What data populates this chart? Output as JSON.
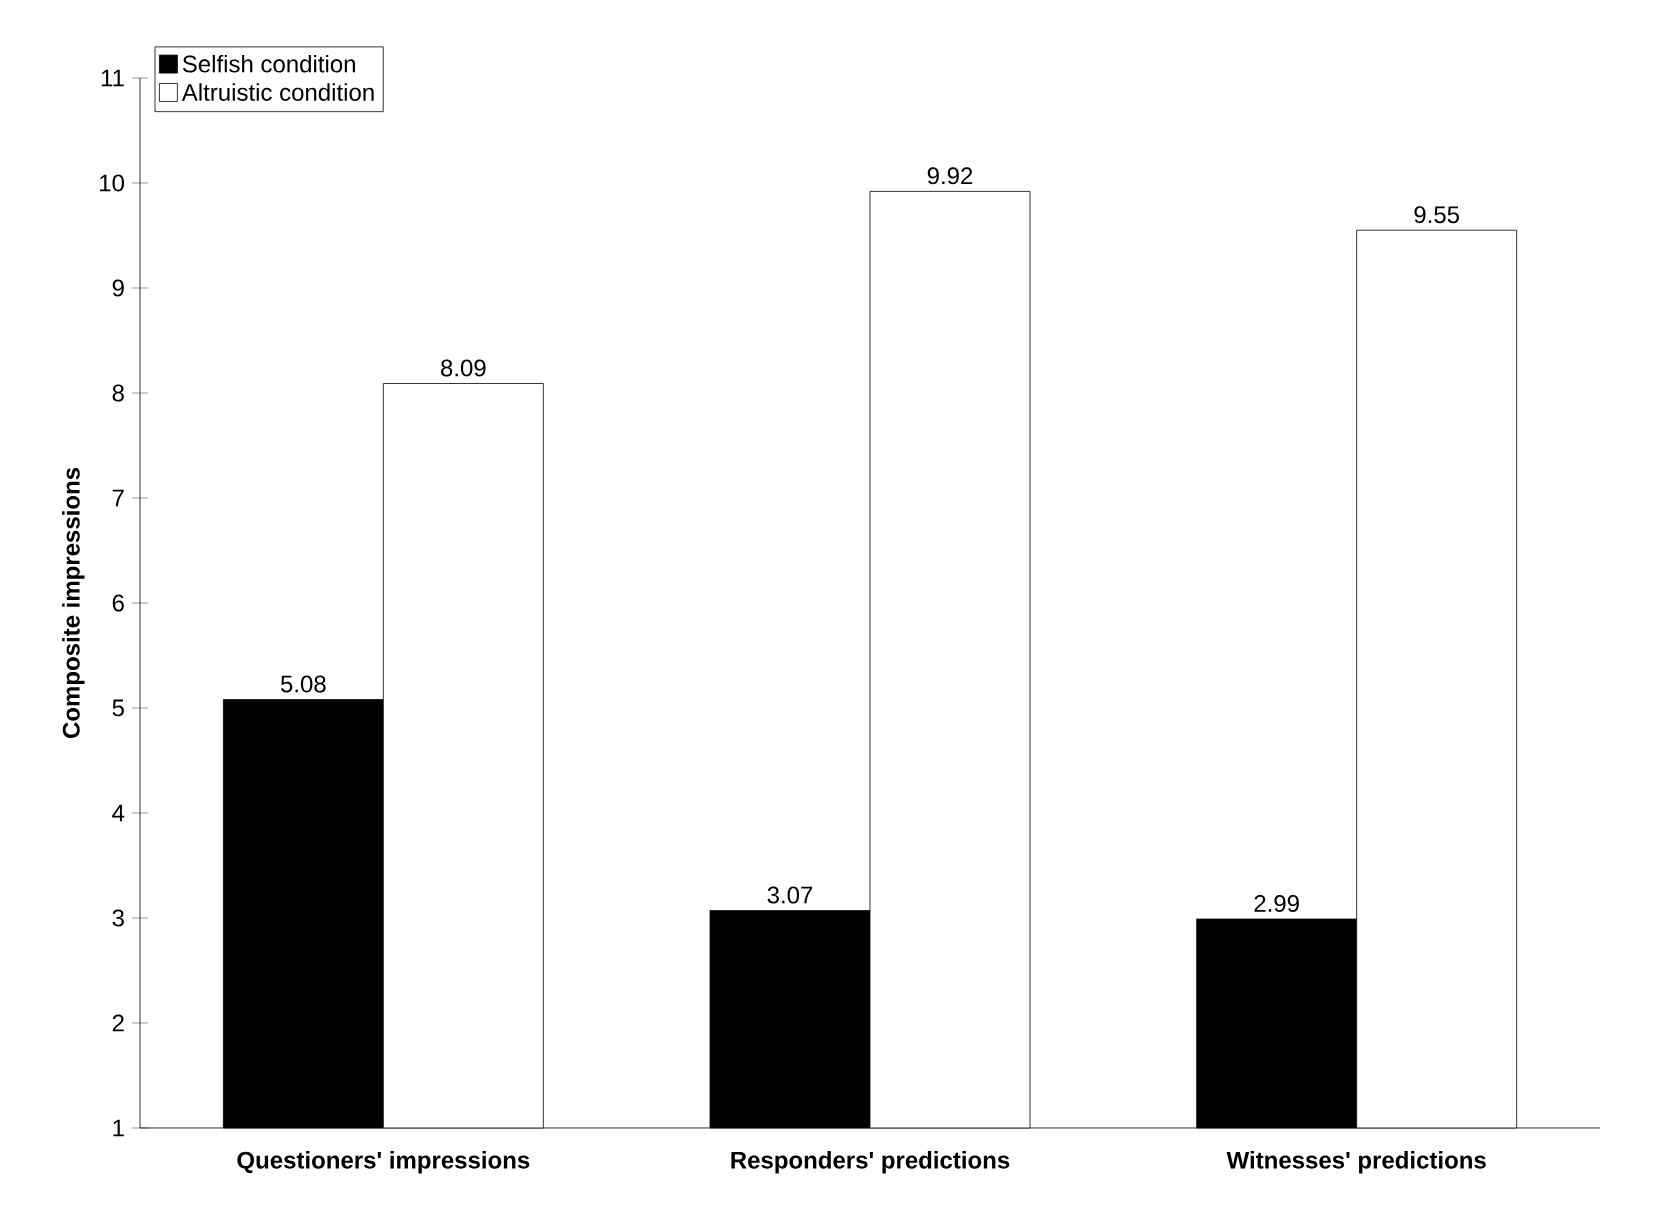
{
  "chart_data": {
    "type": "bar",
    "ylabel": "Composite impressions",
    "categories": [
      "Questioners' impressions",
      "Responders' predictions",
      "Witnesses' predictions"
    ],
    "series": [
      {
        "name": "Selfish condition",
        "color": "#000000",
        "values": [
          5.08,
          3.07,
          2.99
        ]
      },
      {
        "name": "Altruistic condition",
        "color": "#ffffff",
        "values": [
          8.09,
          9.92,
          9.55
        ]
      }
    ],
    "ylim": [
      1,
      11
    ],
    "yticks": [
      1,
      2,
      3,
      4,
      5,
      6,
      7,
      8,
      9,
      10,
      11
    ],
    "data_labels": true,
    "legend": "top left",
    "grid": false
  }
}
